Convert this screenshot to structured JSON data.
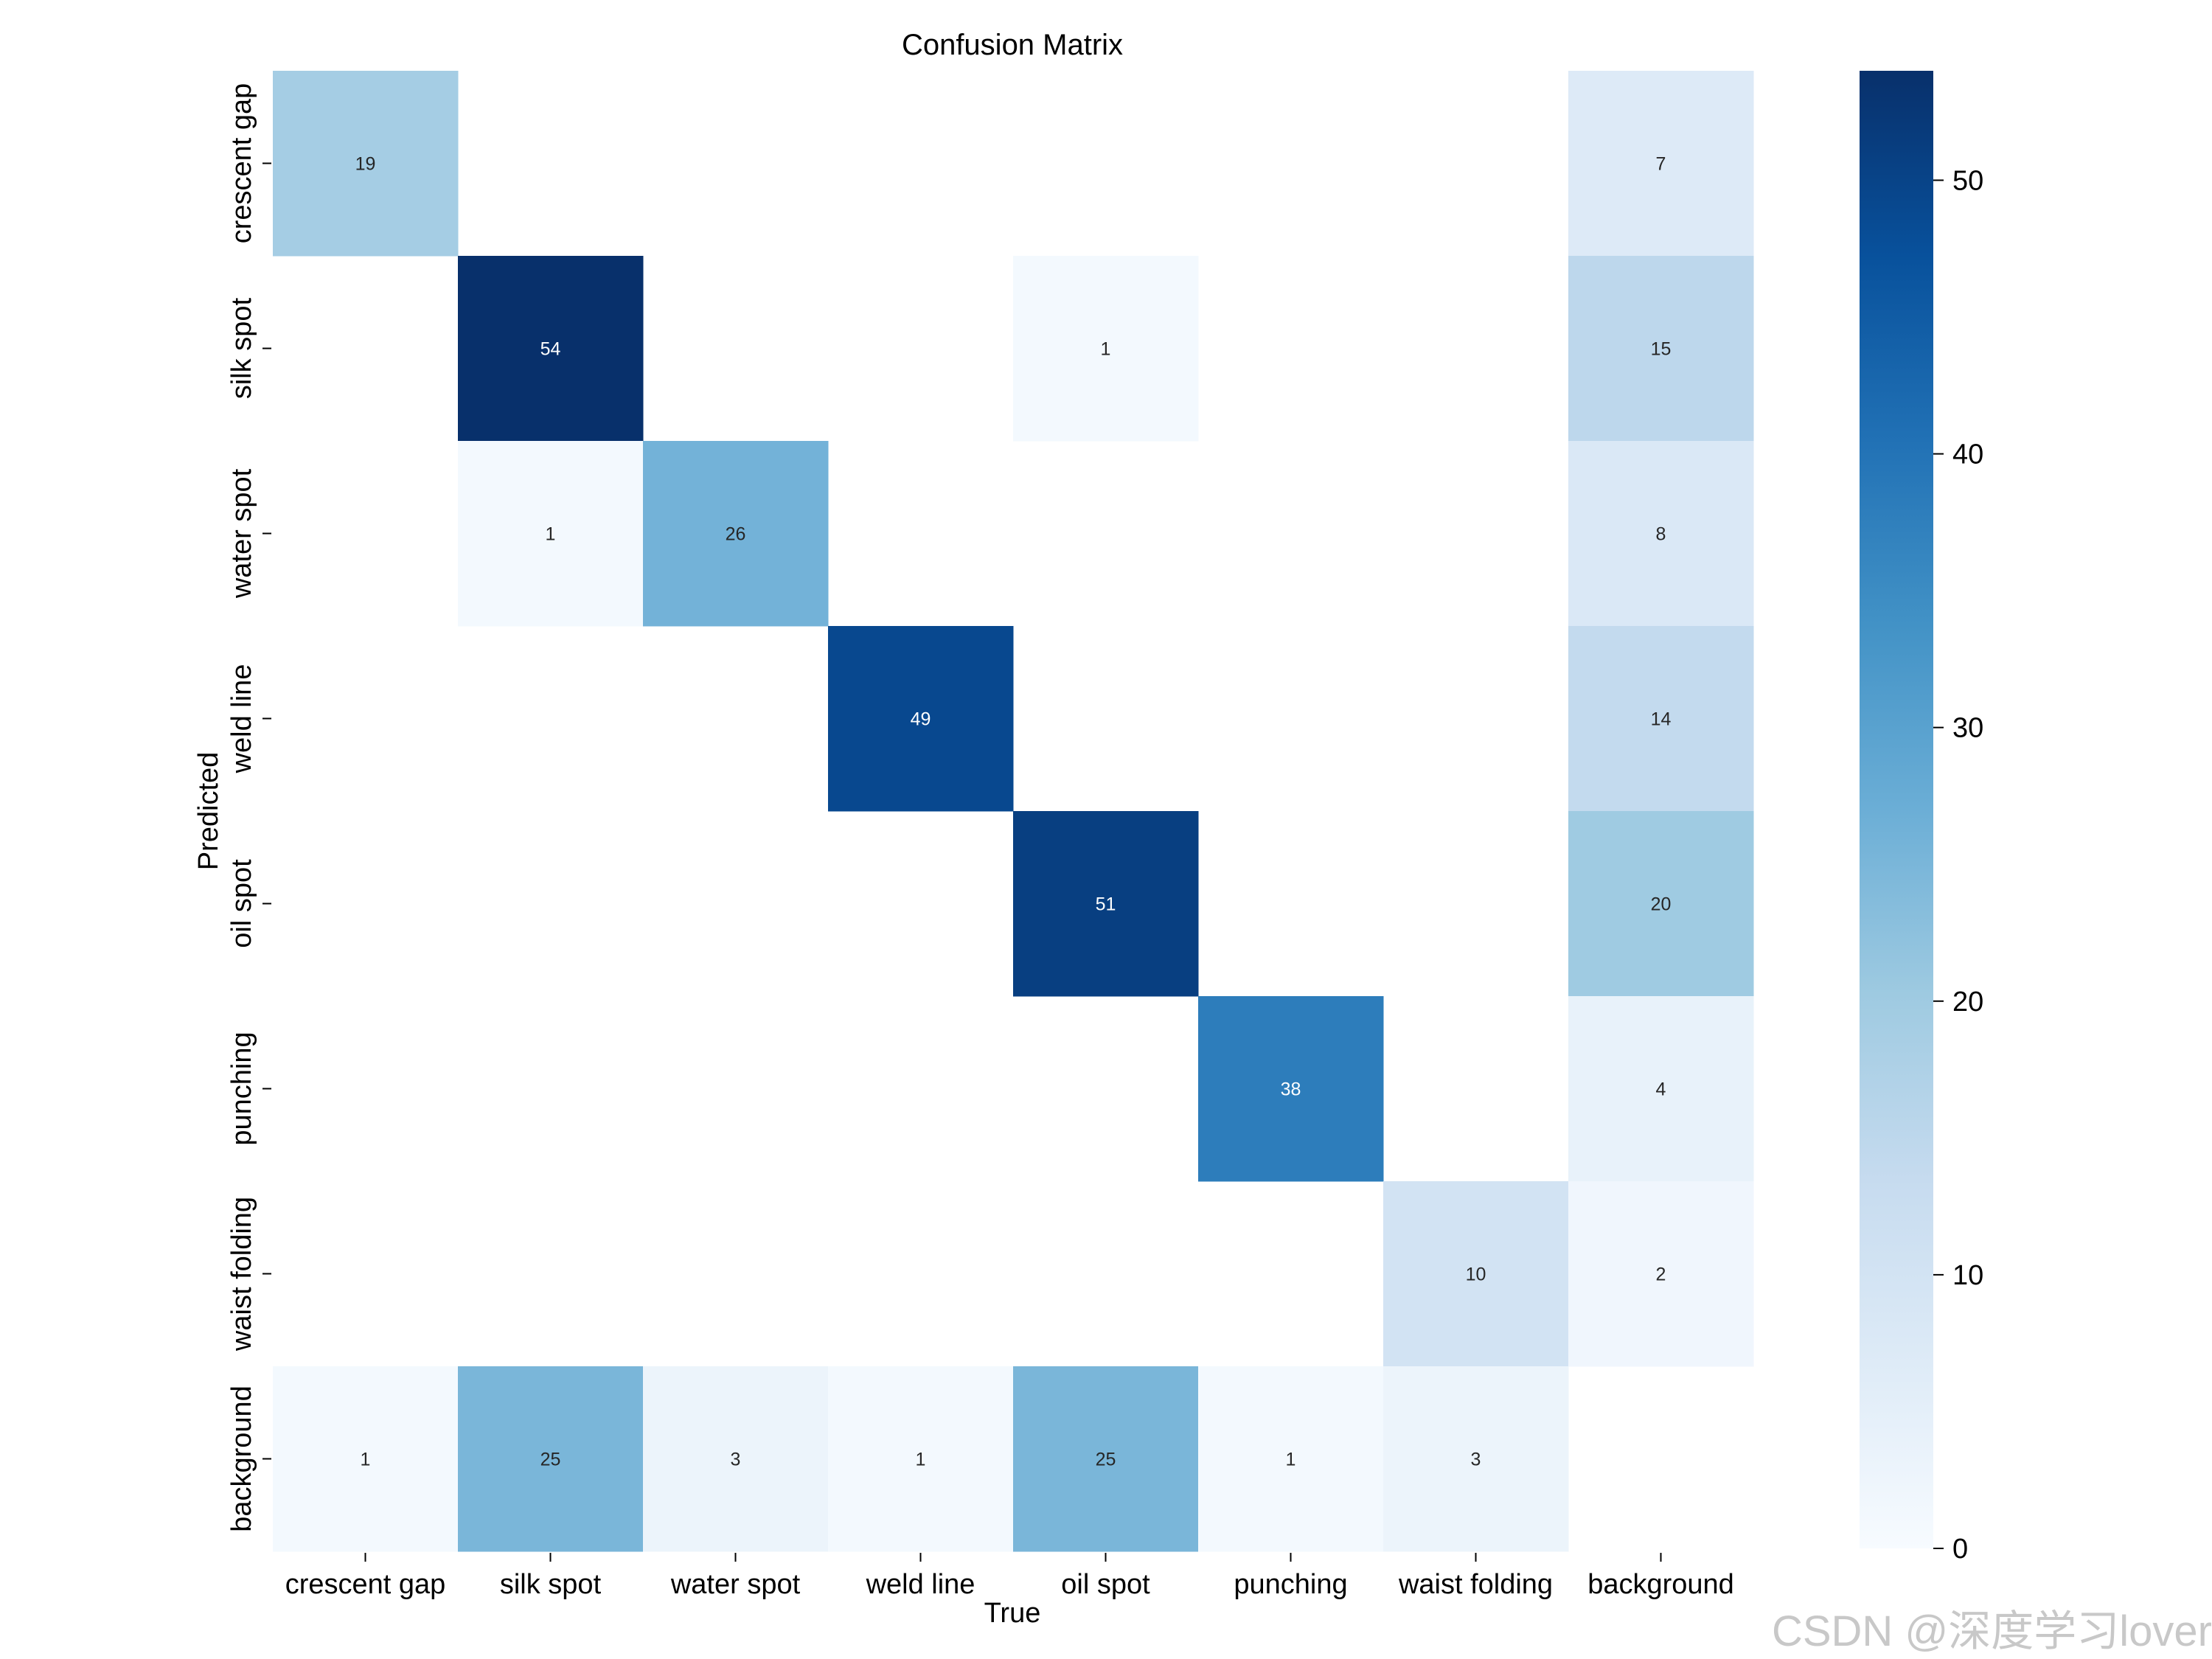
{
  "chart_data": {
    "type": "heatmap",
    "title": "Confusion Matrix",
    "xlabel": "True",
    "ylabel": "Predicted",
    "x_categories": [
      "crescent gap",
      "silk spot",
      "water spot",
      "weld line",
      "oil spot",
      "punching",
      "waist folding",
      "background"
    ],
    "y_categories": [
      "crescent gap",
      "silk spot",
      "water spot",
      "weld line",
      "oil spot",
      "punching",
      "waist folding",
      "background"
    ],
    "matrix": [
      [
        19,
        null,
        null,
        null,
        null,
        null,
        null,
        7
      ],
      [
        null,
        54,
        null,
        null,
        1,
        null,
        null,
        15
      ],
      [
        null,
        1,
        26,
        null,
        null,
        null,
        null,
        8
      ],
      [
        null,
        null,
        null,
        49,
        null,
        null,
        null,
        14
      ],
      [
        null,
        null,
        null,
        null,
        51,
        null,
        null,
        20
      ],
      [
        null,
        null,
        null,
        null,
        null,
        38,
        null,
        4
      ],
      [
        null,
        null,
        null,
        null,
        null,
        null,
        10,
        2
      ],
      [
        1,
        25,
        3,
        1,
        25,
        1,
        3,
        null
      ]
    ],
    "colorbar": {
      "range": [
        0,
        54
      ],
      "ticks": [
        0,
        10,
        20,
        30,
        40,
        50
      ],
      "colormap": "Blues"
    }
  },
  "colors": {
    "blues": [
      "#f7fbff",
      "#deebf7",
      "#c6dbef",
      "#9ecae1",
      "#6baed6",
      "#4292c6",
      "#2171b5",
      "#08519c",
      "#08306b"
    ]
  },
  "watermark": "CSDN @深度学习lover"
}
